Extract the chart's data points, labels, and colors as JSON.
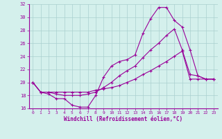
{
  "xlabel": "Windchill (Refroidissement éolien,°C)",
  "xlim": [
    -0.5,
    23.5
  ],
  "ylim": [
    16,
    32
  ],
  "xticks": [
    0,
    1,
    2,
    3,
    4,
    5,
    6,
    7,
    8,
    9,
    10,
    11,
    12,
    13,
    14,
    15,
    16,
    17,
    18,
    19,
    20,
    21,
    22,
    23
  ],
  "yticks": [
    16,
    18,
    20,
    22,
    24,
    26,
    28,
    30,
    32
  ],
  "background_color": "#d4f0ec",
  "line_color": "#990099",
  "grid_color": "#aacfcf",
  "line1_x": [
    0,
    1,
    2,
    3,
    4,
    5,
    6,
    7,
    8,
    9,
    10,
    11,
    12,
    13,
    14,
    15,
    16,
    17,
    18,
    19,
    20,
    21,
    22,
    23
  ],
  "line1_y": [
    20.0,
    18.5,
    18.2,
    17.5,
    17.5,
    16.5,
    16.2,
    16.2,
    18.0,
    20.8,
    22.5,
    23.2,
    23.5,
    24.2,
    27.5,
    29.8,
    31.5,
    31.5,
    29.5,
    28.5,
    25.0,
    21.0,
    20.5,
    20.5
  ],
  "line2_x": [
    0,
    1,
    2,
    3,
    4,
    5,
    6,
    7,
    8,
    9,
    10,
    11,
    12,
    13,
    14,
    15,
    16,
    17,
    18,
    19,
    20,
    21,
    22,
    23
  ],
  "line2_y": [
    20.0,
    18.5,
    18.5,
    18.2,
    18.0,
    18.0,
    18.0,
    18.2,
    18.5,
    19.2,
    20.0,
    21.0,
    21.8,
    22.5,
    23.8,
    25.0,
    26.0,
    27.2,
    28.2,
    25.0,
    21.2,
    21.0,
    20.5,
    20.5
  ],
  "line3_x": [
    0,
    1,
    2,
    3,
    4,
    5,
    6,
    7,
    8,
    9,
    10,
    11,
    12,
    13,
    14,
    15,
    16,
    17,
    18,
    19,
    20,
    21,
    22,
    23
  ],
  "line3_y": [
    20.0,
    18.5,
    18.5,
    18.5,
    18.5,
    18.5,
    18.5,
    18.5,
    18.8,
    19.0,
    19.2,
    19.5,
    20.0,
    20.5,
    21.2,
    21.8,
    22.5,
    23.2,
    24.0,
    24.8,
    20.5,
    20.5,
    20.5,
    20.5
  ]
}
